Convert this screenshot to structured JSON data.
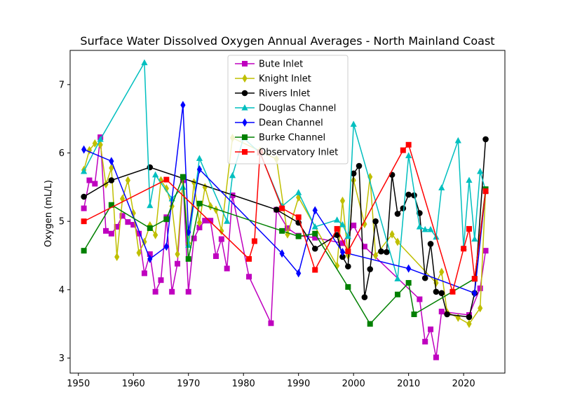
{
  "chart_data": {
    "type": "line",
    "title": "Surface Water Dissolved Oxygen Annual Averages - North Mainland Coast",
    "xlabel": "",
    "ylabel": "Oxygen (mL/L)",
    "xlim": [
      1948.5,
      2027.5
    ],
    "ylim": [
      2.78,
      7.5
    ],
    "xticks": [
      1950,
      1960,
      1970,
      1980,
      1990,
      2000,
      2010,
      2020
    ],
    "yticks": [
      3,
      4,
      5,
      6,
      7
    ],
    "grid": false,
    "legend_position": "top-center",
    "series": [
      {
        "name": "Bute Inlet",
        "color": "#bf00bf",
        "marker": "square",
        "points": [
          [
            1951,
            5.19
          ],
          [
            1952,
            5.6
          ],
          [
            1953,
            5.55
          ],
          [
            1954,
            6.23
          ],
          [
            1955,
            4.86
          ],
          [
            1956,
            4.82
          ],
          [
            1957,
            4.92
          ],
          [
            1958,
            5.08
          ],
          [
            1959,
            4.99
          ],
          [
            1960,
            4.95
          ],
          [
            1961,
            4.82
          ],
          [
            1962,
            4.24
          ],
          [
            1963,
            4.52
          ],
          [
            1964,
            3.97
          ],
          [
            1965,
            4.14
          ],
          [
            1966,
            5.06
          ],
          [
            1967,
            3.97
          ],
          [
            1968,
            4.38
          ],
          [
            1969,
            5.6
          ],
          [
            1970,
            3.97
          ],
          [
            1971,
            4.75
          ],
          [
            1972,
            4.91
          ],
          [
            1973,
            5.01
          ],
          [
            1974,
            5.01
          ],
          [
            1975,
            4.49
          ],
          [
            1976,
            4.74
          ],
          [
            1977,
            4.31
          ],
          [
            1978,
            5.38
          ],
          [
            1981,
            4.19
          ],
          [
            1985,
            3.51
          ],
          [
            1986,
            5.17
          ],
          [
            1988,
            4.9
          ],
          [
            1990,
            4.79
          ],
          [
            1993,
            4.76
          ],
          [
            1998,
            4.68
          ],
          [
            2000,
            4.94
          ],
          [
            2002,
            4.63
          ],
          [
            2012,
            3.86
          ],
          [
            2013,
            3.24
          ],
          [
            2014,
            3.42
          ],
          [
            2015,
            3.01
          ],
          [
            2016,
            3.68
          ],
          [
            2021,
            3.63
          ],
          [
            2023,
            4.02
          ],
          [
            2024,
            4.57
          ]
        ]
      },
      {
        "name": "Knight Inlet",
        "color": "#bfbf00",
        "marker": "diamond",
        "points": [
          [
            1951,
            5.75
          ],
          [
            1952,
            6.04
          ],
          [
            1953,
            6.14
          ],
          [
            1954,
            6.12
          ],
          [
            1955,
            5.54
          ],
          [
            1956,
            5.78
          ],
          [
            1957,
            4.48
          ],
          [
            1958,
            5.33
          ],
          [
            1959,
            5.6
          ],
          [
            1960,
            5.12
          ],
          [
            1961,
            4.54
          ],
          [
            1962,
            4.7
          ],
          [
            1963,
            4.94
          ],
          [
            1964,
            4.8
          ],
          [
            1965,
            5.6
          ],
          [
            1966,
            5.48
          ],
          [
            1967,
            5.22
          ],
          [
            1968,
            4.52
          ],
          [
            1969,
            5.63
          ],
          [
            1970,
            4.68
          ],
          [
            1971,
            5.57
          ],
          [
            1972,
            4.98
          ],
          [
            1973,
            5.5
          ],
          [
            1974,
            5.22
          ],
          [
            1975,
            5.17
          ],
          [
            1976,
            4.86
          ],
          [
            1978,
            6.22
          ],
          [
            1983,
            6.03
          ],
          [
            1986,
            5.91
          ],
          [
            1988,
            4.81
          ],
          [
            1990,
            5.35
          ],
          [
            1997,
            4.35
          ],
          [
            1998,
            5.3
          ],
          [
            1999,
            4.5
          ],
          [
            2000,
            5.6
          ],
          [
            2002,
            4.96
          ],
          [
            2003,
            5.65
          ],
          [
            2004,
            4.5
          ],
          [
            2007,
            4.81
          ],
          [
            2008,
            4.7
          ],
          [
            2015,
            4.1
          ],
          [
            2016,
            4.26
          ],
          [
            2017,
            3.67
          ],
          [
            2019,
            3.59
          ],
          [
            2021,
            3.5
          ],
          [
            2023,
            3.73
          ],
          [
            2024,
            5.45
          ]
        ]
      },
      {
        "name": "Rivers Inlet",
        "color": "#000000",
        "marker": "circle",
        "points": [
          [
            1951,
            5.36
          ],
          [
            1956,
            5.6
          ],
          [
            1963,
            5.79
          ],
          [
            1986,
            5.17
          ],
          [
            1990,
            4.98
          ],
          [
            1993,
            4.6
          ],
          [
            1997,
            4.8
          ],
          [
            1998,
            4.48
          ],
          [
            1999,
            4.34
          ],
          [
            2000,
            5.7
          ],
          [
            2001,
            5.81
          ],
          [
            2002,
            3.89
          ],
          [
            2003,
            4.3
          ],
          [
            2004,
            5
          ],
          [
            2005,
            4.56
          ],
          [
            2006,
            4.55
          ],
          [
            2007,
            5.68
          ],
          [
            2008,
            5.11
          ],
          [
            2009,
            5.19
          ],
          [
            2010,
            5.39
          ],
          [
            2011,
            5.38
          ],
          [
            2012,
            5.12
          ],
          [
            2013,
            4.17
          ],
          [
            2014,
            4.67
          ],
          [
            2015,
            3.97
          ],
          [
            2016,
            3.95
          ],
          [
            2017,
            3.64
          ],
          [
            2021,
            3.6
          ],
          [
            2022,
            3.95
          ],
          [
            2024,
            6.2
          ]
        ]
      },
      {
        "name": "Douglas Channel",
        "color": "#00bfbf",
        "marker": "triangle",
        "points": [
          [
            1951,
            5.73
          ],
          [
            1954,
            6.2
          ],
          [
            1962,
            7.32
          ],
          [
            1963,
            5.23
          ],
          [
            1964,
            5.68
          ],
          [
            1967,
            5.33
          ],
          [
            1969,
            5.5
          ],
          [
            1970,
            4.65
          ],
          [
            1972,
            5.92
          ],
          [
            1977,
            5
          ],
          [
            1978,
            5.67
          ],
          [
            1980,
            6.22
          ],
          [
            1983,
            6
          ],
          [
            1987,
            5.22
          ],
          [
            1990,
            5.42
          ],
          [
            1993,
            4.92
          ],
          [
            1997,
            5.02
          ],
          [
            1998,
            4.95
          ],
          [
            1999,
            4.78
          ],
          [
            2000,
            6.42
          ],
          [
            2008,
            4.16
          ],
          [
            2010,
            5.96
          ],
          [
            2012,
            4.92
          ],
          [
            2013,
            4.88
          ],
          [
            2014,
            4.88
          ],
          [
            2015,
            4.77
          ],
          [
            2016,
            5.49
          ],
          [
            2019,
            6.18
          ],
          [
            2020,
            4.62
          ],
          [
            2021,
            5.6
          ],
          [
            2022,
            4.74
          ],
          [
            2023,
            5.73
          ],
          [
            2024,
            5.45
          ]
        ]
      },
      {
        "name": "Dean Channel",
        "color": "#0000ff",
        "marker": "diamond",
        "points": [
          [
            1951,
            6.05
          ],
          [
            1956,
            5.88
          ],
          [
            1963,
            4.45
          ],
          [
            1966,
            4.63
          ],
          [
            1969,
            6.7
          ],
          [
            1970,
            4.84
          ],
          [
            1972,
            5.76
          ],
          [
            1987,
            4.53
          ],
          [
            1990,
            4.24
          ],
          [
            1993,
            5.16
          ],
          [
            1998,
            4.55
          ],
          [
            2010,
            4.31
          ],
          [
            2022,
            3.95
          ],
          [
            2024,
            5.45
          ]
        ]
      },
      {
        "name": "Burke Channel",
        "color": "#008000",
        "marker": "square",
        "points": [
          [
            1951,
            4.57
          ],
          [
            1956,
            5.24
          ],
          [
            1963,
            4.9
          ],
          [
            1966,
            5.03
          ],
          [
            1969,
            5.65
          ],
          [
            1970,
            4.45
          ],
          [
            1972,
            5.26
          ],
          [
            1987,
            4.86
          ],
          [
            1990,
            4.78
          ],
          [
            1993,
            4.82
          ],
          [
            1999,
            4.04
          ],
          [
            2003,
            3.5
          ],
          [
            2008,
            3.93
          ],
          [
            2010,
            4.1
          ],
          [
            2011,
            3.64
          ],
          [
            2022,
            4.16
          ],
          [
            2024,
            5.47
          ]
        ]
      },
      {
        "name": "Observatory Inlet",
        "color": "#ff0000",
        "marker": "square",
        "points": [
          [
            1951,
            5
          ],
          [
            1966,
            5.61
          ],
          [
            1981,
            4.45
          ],
          [
            1982,
            4.71
          ],
          [
            1983,
            6.01
          ],
          [
            1987,
            5.19
          ],
          [
            1990,
            5.06
          ],
          [
            1993,
            4.29
          ],
          [
            1997,
            4.89
          ],
          [
            1999,
            4.56
          ],
          [
            2009,
            6.04
          ],
          [
            2010,
            6.12
          ],
          [
            2018,
            3.97
          ],
          [
            2020,
            4.6
          ],
          [
            2021,
            4.89
          ],
          [
            2022,
            4.16
          ],
          [
            2024,
            5.44
          ]
        ]
      }
    ]
  }
}
